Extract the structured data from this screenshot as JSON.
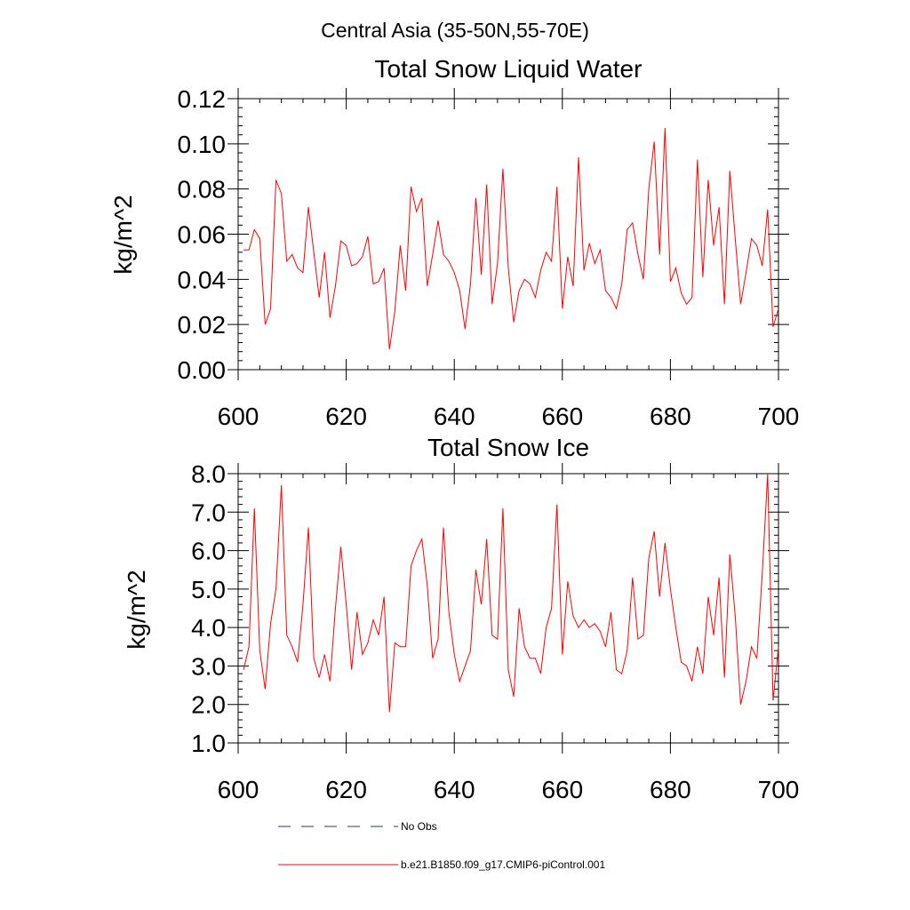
{
  "suptitle": "Central Asia (35-50N,55-70E)",
  "legend": [
    {
      "label": "No Obs",
      "color": "#2a3a6a",
      "style": "dashed"
    },
    {
      "label": "b.e21.B1850.f09_g17.CMIP6-piControl.001",
      "color": "#ff0000",
      "style": "solid"
    }
  ],
  "chart_data": [
    {
      "type": "line",
      "title": "Total Snow Liquid Water",
      "xlabel": "",
      "ylabel": "kg/m^2",
      "xlim": [
        600,
        700
      ],
      "ylim": [
        0,
        0.12
      ],
      "xticks": [
        600,
        620,
        640,
        660,
        680,
        700
      ],
      "xtick_labels": [
        "600",
        "620",
        "640",
        "660",
        "680",
        "700"
      ],
      "yticks": [
        0,
        0.02,
        0.04,
        0.06,
        0.08,
        0.1,
        0.12
      ],
      "ytick_labels": [
        "0.00",
        "0.02",
        "0.04",
        "0.06",
        "0.08",
        "0.10",
        "0.12"
      ],
      "series": [
        {
          "name": "b.e21.B1850.f09_g17.CMIP6-piControl.001",
          "color": "#ff0000",
          "x": [
            601,
            602,
            603,
            604,
            605,
            606,
            607,
            608,
            609,
            610,
            611,
            612,
            613,
            614,
            615,
            616,
            617,
            618,
            619,
            620,
            621,
            622,
            623,
            624,
            625,
            626,
            627,
            628,
            629,
            630,
            631,
            632,
            633,
            634,
            635,
            636,
            637,
            638,
            639,
            640,
            641,
            642,
            643,
            644,
            645,
            646,
            647,
            648,
            649,
            650,
            651,
            652,
            653,
            654,
            655,
            656,
            657,
            658,
            659,
            660,
            661,
            662,
            663,
            664,
            665,
            666,
            667,
            668,
            669,
            670,
            671,
            672,
            673,
            674,
            675,
            676,
            677,
            678,
            679,
            680,
            681,
            682,
            683,
            684,
            685,
            686,
            687,
            688,
            689,
            690,
            691,
            692,
            693,
            694,
            695,
            696,
            697,
            698,
            699,
            700
          ],
          "values": [
            0.053,
            0.053,
            0.062,
            0.058,
            0.02,
            0.027,
            0.084,
            0.078,
            0.048,
            0.051,
            0.045,
            0.043,
            0.072,
            0.052,
            0.032,
            0.052,
            0.023,
            0.037,
            0.057,
            0.055,
            0.046,
            0.047,
            0.05,
            0.059,
            0.038,
            0.039,
            0.045,
            0.009,
            0.026,
            0.055,
            0.035,
            0.081,
            0.07,
            0.076,
            0.037,
            0.051,
            0.066,
            0.051,
            0.048,
            0.043,
            0.035,
            0.018,
            0.038,
            0.076,
            0.042,
            0.082,
            0.029,
            0.047,
            0.089,
            0.045,
            0.021,
            0.035,
            0.04,
            0.038,
            0.032,
            0.044,
            0.052,
            0.048,
            0.081,
            0.027,
            0.05,
            0.037,
            0.094,
            0.044,
            0.056,
            0.047,
            0.053,
            0.035,
            0.032,
            0.027,
            0.038,
            0.062,
            0.065,
            0.051,
            0.04,
            0.08,
            0.101,
            0.051,
            0.107,
            0.039,
            0.045,
            0.034,
            0.029,
            0.032,
            0.093,
            0.041,
            0.084,
            0.055,
            0.072,
            0.029,
            0.088,
            0.058,
            0.029,
            0.043,
            0.058,
            0.055,
            0.046,
            0.071,
            0.019,
            0.027
          ]
        }
      ]
    },
    {
      "type": "line",
      "title": "Total Snow Ice",
      "xlabel": "",
      "ylabel": "kg/m^2",
      "xlim": [
        600,
        700
      ],
      "ylim": [
        1,
        8
      ],
      "xticks": [
        600,
        620,
        640,
        660,
        680,
        700
      ],
      "xtick_labels": [
        "600",
        "620",
        "640",
        "660",
        "680",
        "700"
      ],
      "yticks": [
        1,
        2,
        3,
        4,
        5,
        6,
        7,
        8
      ],
      "ytick_labels": [
        "1.0",
        "2.0",
        "3.0",
        "4.0",
        "5.0",
        "6.0",
        "7.0",
        "8.0"
      ],
      "series": [
        {
          "name": "b.e21.B1850.f09_g17.CMIP6-piControl.001",
          "color": "#ff0000",
          "x": [
            601,
            602,
            603,
            604,
            605,
            606,
            607,
            608,
            609,
            610,
            611,
            612,
            613,
            614,
            615,
            616,
            617,
            618,
            619,
            620,
            621,
            622,
            623,
            624,
            625,
            626,
            627,
            628,
            629,
            630,
            631,
            632,
            633,
            634,
            635,
            636,
            637,
            638,
            639,
            640,
            641,
            642,
            643,
            644,
            645,
            646,
            647,
            648,
            649,
            650,
            651,
            652,
            653,
            654,
            655,
            656,
            657,
            658,
            659,
            660,
            661,
            662,
            663,
            664,
            665,
            666,
            667,
            668,
            669,
            670,
            671,
            672,
            673,
            674,
            675,
            676,
            677,
            678,
            679,
            680,
            681,
            682,
            683,
            684,
            685,
            686,
            687,
            688,
            689,
            690,
            691,
            692,
            693,
            694,
            695,
            696,
            697,
            698,
            699,
            700
          ],
          "values": [
            2.9,
            3.5,
            7.1,
            3.4,
            2.4,
            4.1,
            5.0,
            7.7,
            3.8,
            3.5,
            3.1,
            4.6,
            6.6,
            3.2,
            2.7,
            3.3,
            2.6,
            4.5,
            6.1,
            4.6,
            2.9,
            4.4,
            3.3,
            3.6,
            4.2,
            3.8,
            4.8,
            1.8,
            3.6,
            3.5,
            3.5,
            5.6,
            6.0,
            6.3,
            5.1,
            3.2,
            3.7,
            6.6,
            4.4,
            3.3,
            2.6,
            3.0,
            3.4,
            5.5,
            4.6,
            6.3,
            3.8,
            3.7,
            7.1,
            2.9,
            2.2,
            4.5,
            3.5,
            3.2,
            3.2,
            2.8,
            4.0,
            4.5,
            7.2,
            3.3,
            5.2,
            4.3,
            4.0,
            4.2,
            4.0,
            4.1,
            3.9,
            3.5,
            4.4,
            2.9,
            2.8,
            3.4,
            5.3,
            3.7,
            3.8,
            5.8,
            6.5,
            4.8,
            6.2,
            5.0,
            4.0,
            3.1,
            3.0,
            2.6,
            3.5,
            2.8,
            4.8,
            3.8,
            5.3,
            2.7,
            5.9,
            4.3,
            2.0,
            2.6,
            3.5,
            3.2,
            5.4,
            8.0,
            2.1,
            3.5
          ]
        }
      ]
    }
  ]
}
